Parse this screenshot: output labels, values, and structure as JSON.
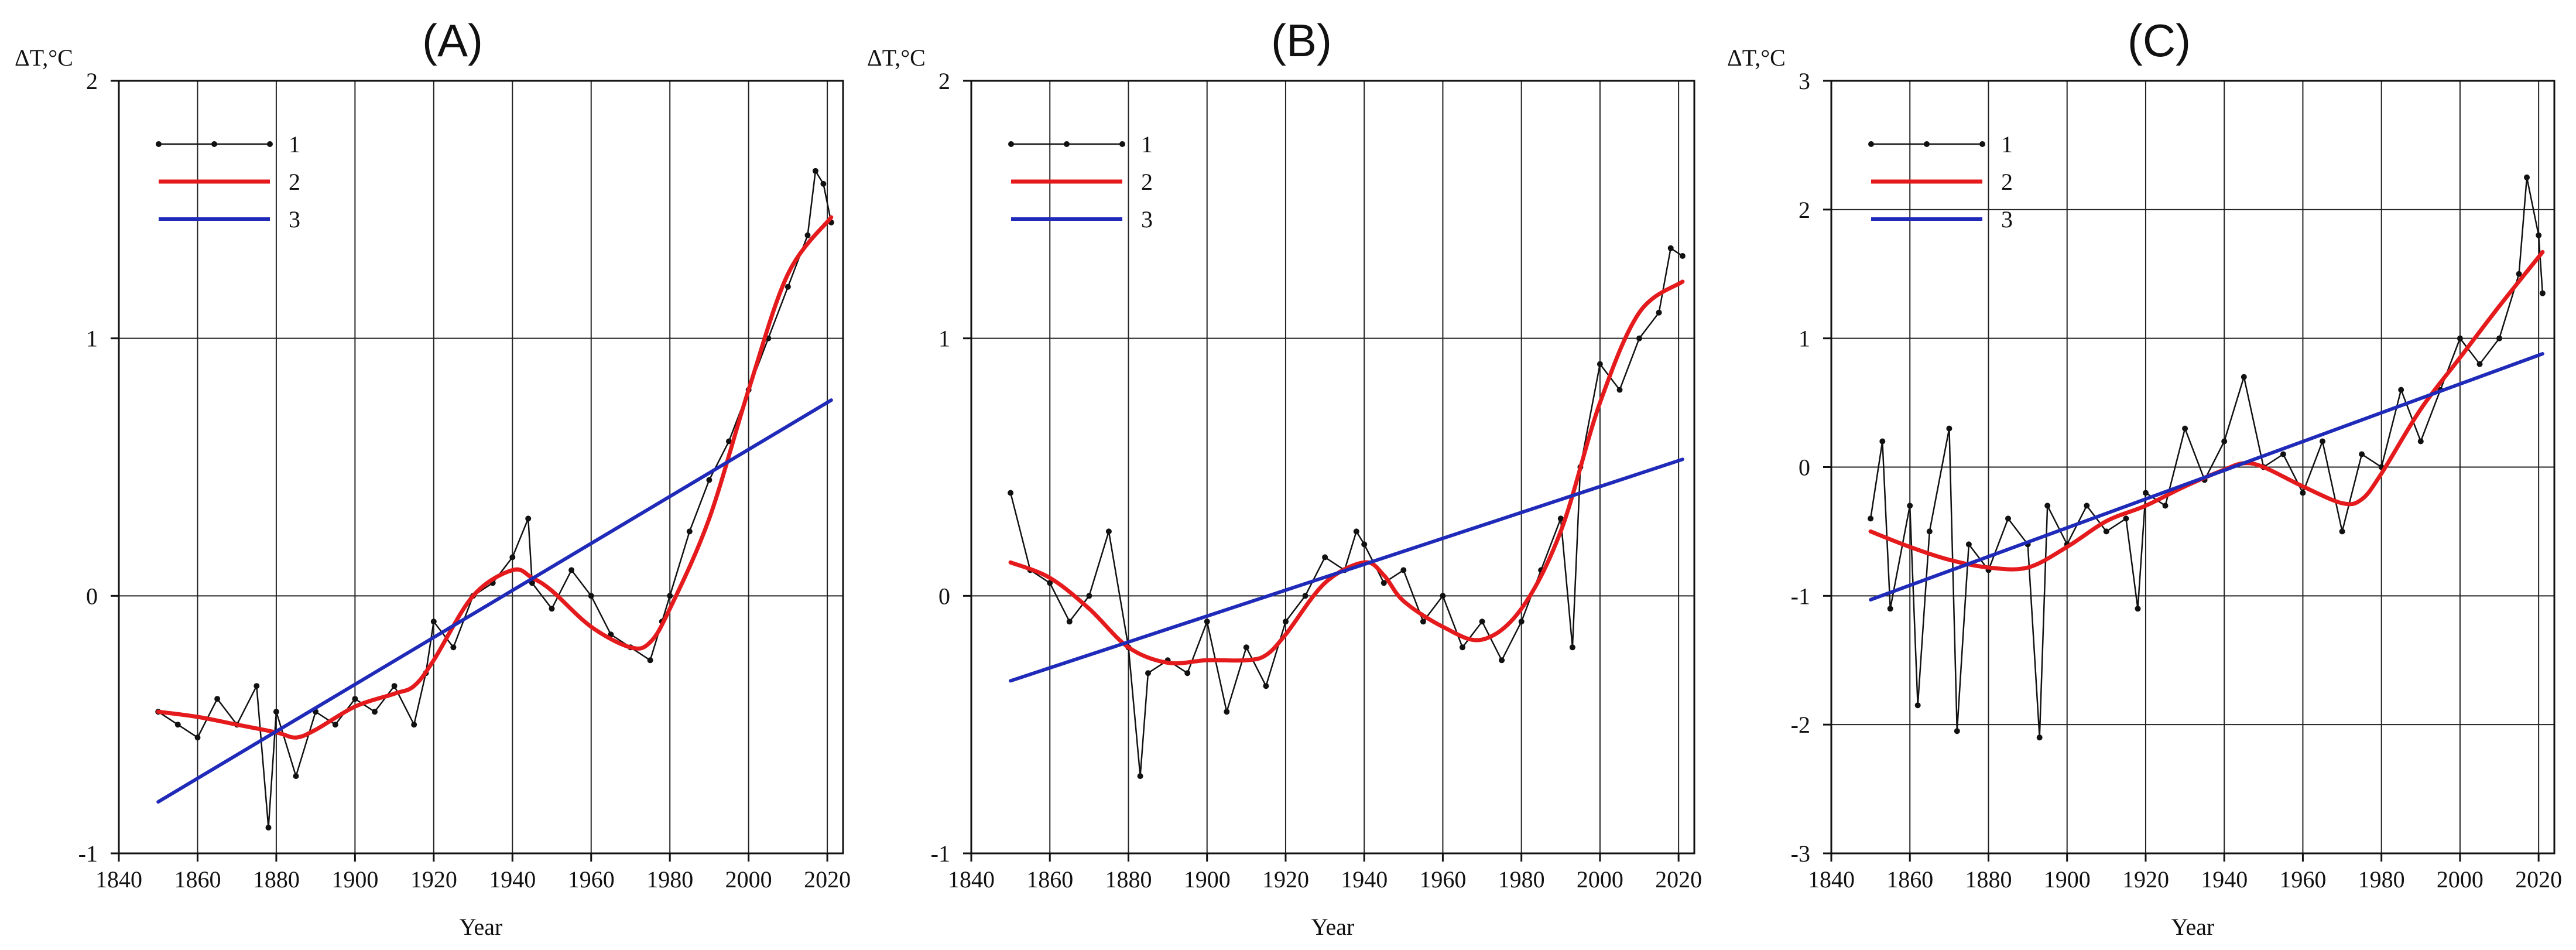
{
  "chart_data": [
    {
      "type": "line",
      "title": "(A)",
      "ylabel": "ΔT,°C",
      "xlabel": "Year",
      "xlim": [
        1840,
        2024
      ],
      "ylim": [
        -1,
        2
      ],
      "xticks": [
        1840,
        1860,
        1880,
        1900,
        1920,
        1940,
        1960,
        1980,
        2000,
        2020
      ],
      "yticks": [
        -1,
        0,
        1,
        2
      ],
      "ytick_labels": [
        "-1",
        "0",
        "1",
        "2"
      ],
      "grid": true,
      "legend": {
        "placement": "top-left",
        "entries": [
          "1",
          "2",
          "3"
        ]
      },
      "series": [
        {
          "name": "1",
          "color": "#111111",
          "style": "line-markers",
          "x": [
            1850,
            1855,
            1860,
            1865,
            1870,
            1875,
            1878,
            1880,
            1885,
            1890,
            1895,
            1900,
            1905,
            1910,
            1915,
            1918,
            1920,
            1925,
            1930,
            1935,
            1940,
            1944,
            1945,
            1950,
            1955,
            1960,
            1965,
            1970,
            1975,
            1978,
            1980,
            1985,
            1990,
            1995,
            2000,
            2005,
            2010,
            2015,
            2017,
            2019,
            2021
          ],
          "y": [
            -0.45,
            -0.5,
            -0.55,
            -0.4,
            -0.5,
            -0.35,
            -0.9,
            -0.45,
            -0.7,
            -0.45,
            -0.5,
            -0.4,
            -0.45,
            -0.35,
            -0.5,
            -0.3,
            -0.1,
            -0.2,
            0.0,
            0.05,
            0.15,
            0.3,
            0.05,
            -0.05,
            0.1,
            0.0,
            -0.15,
            -0.2,
            -0.25,
            -0.1,
            0.0,
            0.25,
            0.45,
            0.6,
            0.8,
            1.0,
            1.2,
            1.4,
            1.65,
            1.6,
            1.45
          ]
        },
        {
          "name": "2",
          "color": "#e41a1c",
          "style": "smooth",
          "x": [
            1850,
            1860,
            1870,
            1880,
            1885,
            1890,
            1900,
            1910,
            1915,
            1920,
            1930,
            1940,
            1945,
            1950,
            1960,
            1970,
            1975,
            1980,
            1990,
            2000,
            2010,
            2021
          ],
          "y": [
            -0.45,
            -0.47,
            -0.5,
            -0.53,
            -0.55,
            -0.52,
            -0.43,
            -0.38,
            -0.35,
            -0.25,
            0.0,
            0.1,
            0.07,
            0.02,
            -0.12,
            -0.2,
            -0.18,
            -0.05,
            0.3,
            0.8,
            1.25,
            1.47
          ]
        },
        {
          "name": "3",
          "color": "#1f2ab8",
          "style": "line",
          "x": [
            1850,
            2021
          ],
          "y": [
            -0.8,
            0.76
          ]
        }
      ]
    },
    {
      "type": "line",
      "title": "(B)",
      "ylabel": "ΔT,°C",
      "xlabel": "Year",
      "xlim": [
        1840,
        2024
      ],
      "ylim": [
        -1,
        2
      ],
      "xticks": [
        1840,
        1860,
        1880,
        1900,
        1920,
        1940,
        1960,
        1980,
        2000,
        2020
      ],
      "yticks": [
        -1,
        0,
        1,
        2
      ],
      "ytick_labels": [
        "-1",
        "0",
        "1",
        "2"
      ],
      "grid": true,
      "legend": {
        "placement": "top-left",
        "entries": [
          "1",
          "2",
          "3"
        ]
      },
      "series": [
        {
          "name": "1",
          "color": "#111111",
          "style": "line-markers",
          "x": [
            1850,
            1855,
            1860,
            1865,
            1870,
            1875,
            1880,
            1883,
            1885,
            1890,
            1895,
            1900,
            1905,
            1910,
            1915,
            1920,
            1925,
            1930,
            1935,
            1938,
            1940,
            1945,
            1950,
            1955,
            1960,
            1965,
            1970,
            1975,
            1980,
            1985,
            1990,
            1993,
            1995,
            2000,
            2005,
            2010,
            2015,
            2018,
            2021
          ],
          "y": [
            0.4,
            0.1,
            0.05,
            -0.1,
            0.0,
            0.25,
            -0.2,
            -0.7,
            -0.3,
            -0.25,
            -0.3,
            -0.1,
            -0.45,
            -0.2,
            -0.35,
            -0.1,
            0.0,
            0.15,
            0.1,
            0.25,
            0.2,
            0.05,
            0.1,
            -0.1,
            0.0,
            -0.2,
            -0.1,
            -0.25,
            -0.1,
            0.1,
            0.3,
            -0.2,
            0.5,
            0.9,
            0.8,
            1.0,
            1.1,
            1.35,
            1.32
          ]
        },
        {
          "name": "2",
          "color": "#e41a1c",
          "style": "smooth",
          "x": [
            1850,
            1860,
            1870,
            1880,
            1890,
            1900,
            1910,
            1915,
            1920,
            1930,
            1940,
            1945,
            1950,
            1960,
            1970,
            1980,
            1990,
            2000,
            2010,
            2021
          ],
          "y": [
            0.13,
            0.07,
            -0.05,
            -0.2,
            -0.26,
            -0.25,
            -0.25,
            -0.23,
            -0.15,
            0.05,
            0.13,
            0.08,
            -0.02,
            -0.12,
            -0.17,
            -0.05,
            0.25,
            0.75,
            1.1,
            1.22
          ]
        },
        {
          "name": "3",
          "color": "#1f2ab8",
          "style": "line",
          "x": [
            1850,
            2021
          ],
          "y": [
            -0.33,
            0.53
          ]
        }
      ]
    },
    {
      "type": "line",
      "title": "(C)",
      "ylabel": "ΔT,°C",
      "xlabel": "Year",
      "xlim": [
        1840,
        2024
      ],
      "ylim": [
        -3,
        3
      ],
      "xticks": [
        1840,
        1860,
        1880,
        1900,
        1920,
        1940,
        1960,
        1980,
        2000,
        2020
      ],
      "yticks": [
        -3,
        -2,
        -1,
        0,
        1,
        2,
        3
      ],
      "ytick_labels": [
        "-3",
        "-2",
        "-1",
        "0",
        "1",
        "2",
        "3"
      ],
      "grid": true,
      "legend": {
        "placement": "top-left",
        "entries": [
          "1",
          "2",
          "3"
        ]
      },
      "series": [
        {
          "name": "1",
          "color": "#111111",
          "style": "line-markers",
          "x": [
            1850,
            1853,
            1855,
            1860,
            1862,
            1865,
            1870,
            1872,
            1875,
            1880,
            1885,
            1890,
            1893,
            1895,
            1900,
            1905,
            1910,
            1915,
            1918,
            1920,
            1925,
            1930,
            1935,
            1940,
            1945,
            1950,
            1955,
            1960,
            1965,
            1970,
            1975,
            1980,
            1985,
            1990,
            1995,
            2000,
            2005,
            2010,
            2015,
            2017,
            2020,
            2021
          ],
          "y": [
            -0.4,
            0.2,
            -1.1,
            -0.3,
            -1.85,
            -0.5,
            0.3,
            -2.05,
            -0.6,
            -0.8,
            -0.4,
            -0.6,
            -2.1,
            -0.3,
            -0.6,
            -0.3,
            -0.5,
            -0.4,
            -1.1,
            -0.2,
            -0.3,
            0.3,
            -0.1,
            0.2,
            0.7,
            0.0,
            0.1,
            -0.2,
            0.2,
            -0.5,
            0.1,
            0.0,
            0.6,
            0.2,
            0.6,
            1.0,
            0.8,
            1.0,
            1.5,
            2.25,
            1.8,
            1.35
          ]
        },
        {
          "name": "2",
          "color": "#e41a1c",
          "style": "smooth",
          "x": [
            1850,
            1860,
            1870,
            1880,
            1890,
            1900,
            1910,
            1920,
            1930,
            1940,
            1945,
            1950,
            1960,
            1970,
            1975,
            1980,
            1990,
            2000,
            2010,
            2021
          ],
          "y": [
            -0.5,
            -0.62,
            -0.72,
            -0.78,
            -0.78,
            -0.62,
            -0.42,
            -0.3,
            -0.15,
            -0.02,
            0.03,
            0.0,
            -0.15,
            -0.28,
            -0.25,
            -0.05,
            0.45,
            0.85,
            1.25,
            1.67
          ]
        },
        {
          "name": "3",
          "color": "#1f2ab8",
          "style": "line",
          "x": [
            1850,
            2021
          ],
          "y": [
            -1.03,
            0.88
          ]
        }
      ]
    }
  ]
}
